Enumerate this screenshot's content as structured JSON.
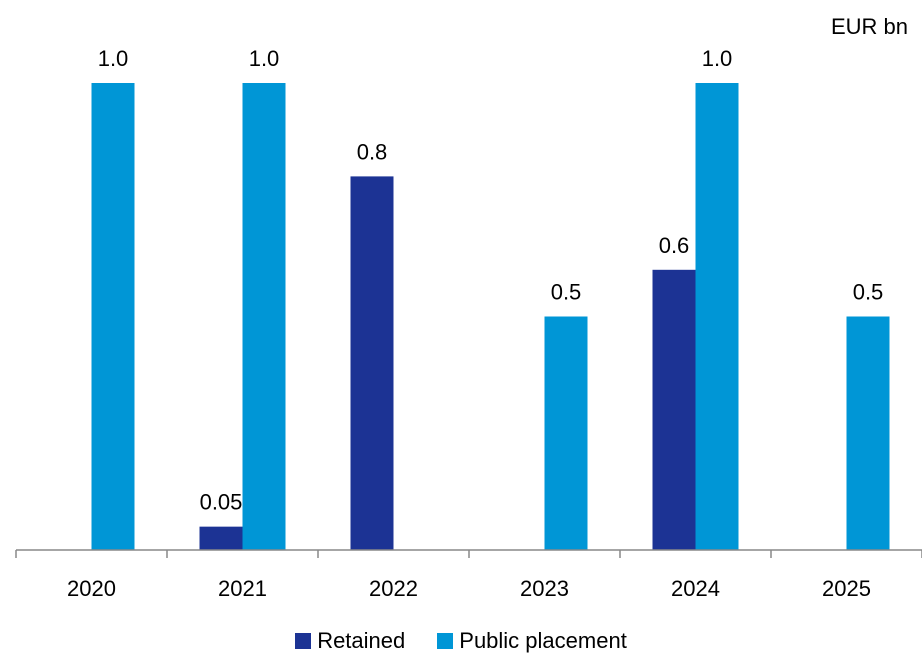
{
  "chart_data": {
    "type": "bar",
    "unit_label": "EUR bn",
    "categories": [
      "2020",
      "2021",
      "2022",
      "2023",
      "2024",
      "2025"
    ],
    "series": [
      {
        "name": "Retained",
        "color": "#1c3394",
        "values": [
          null,
          0.05,
          0.8,
          null,
          0.6,
          null
        ],
        "labels": [
          "",
          "0.05",
          "0.8",
          "",
          "0.6",
          ""
        ]
      },
      {
        "name": "Public placement",
        "color": "#0096d6",
        "values": [
          1.0,
          1.0,
          null,
          0.5,
          1.0,
          0.5
        ],
        "labels": [
          "1.0",
          "1.0",
          "",
          "0.5",
          "1.0",
          "0.5"
        ]
      }
    ],
    "ylim": [
      0,
      1.0
    ],
    "grid": false,
    "legend_position": "bottom-center"
  }
}
